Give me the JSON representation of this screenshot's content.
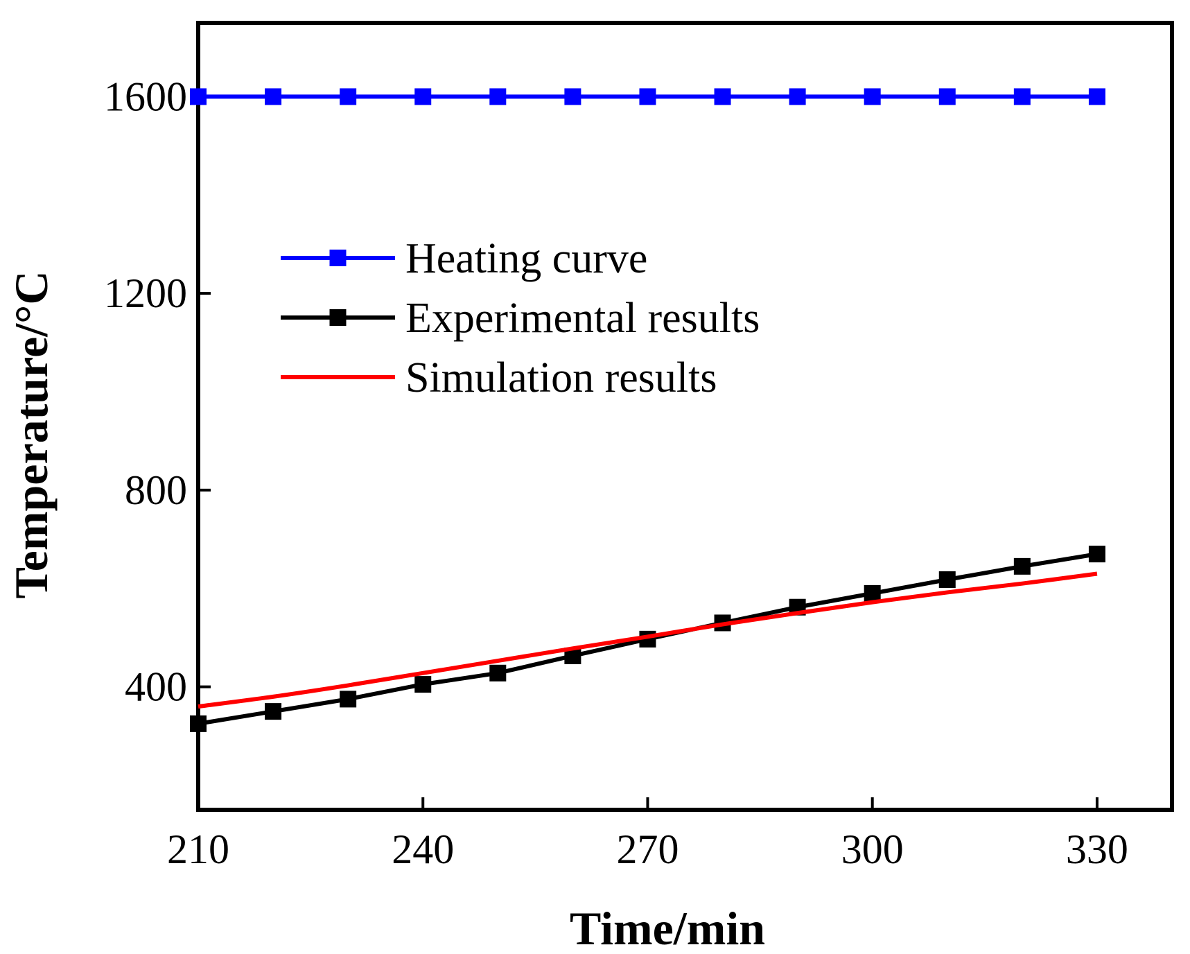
{
  "chart_data": {
    "type": "line",
    "title": "",
    "xlabel": "Time/min",
    "ylabel": "Temperature/°C",
    "xlim": [
      210,
      340
    ],
    "ylim": [
      150,
      1750
    ],
    "xticks": [
      210,
      240,
      270,
      300,
      330
    ],
    "yticks": [
      400,
      800,
      1200,
      1600
    ],
    "legend_position": "center-left",
    "series": [
      {
        "name": "Heating curve",
        "color": "#0000ff",
        "marker": "square",
        "x": [
          210,
          220,
          230,
          240,
          250,
          260,
          270,
          280,
          290,
          300,
          310,
          320,
          330
        ],
        "y": [
          1600,
          1600,
          1600,
          1600,
          1600,
          1600,
          1600,
          1600,
          1600,
          1600,
          1600,
          1600,
          1600
        ]
      },
      {
        "name": "Experimental results",
        "color": "#000000",
        "marker": "square",
        "x": [
          210,
          220,
          230,
          240,
          250,
          260,
          270,
          280,
          290,
          300,
          310,
          320,
          330
        ],
        "y": [
          325,
          350,
          375,
          405,
          428,
          463,
          497,
          530,
          562,
          590,
          618,
          645,
          670
        ]
      },
      {
        "name": "Simulation results",
        "color": "#ff0000",
        "marker": "none",
        "x": [
          210,
          220,
          230,
          240,
          250,
          260,
          270,
          280,
          290,
          300,
          310,
          320,
          330
        ],
        "y": [
          360,
          380,
          403,
          428,
          453,
          478,
          502,
          527,
          550,
          572,
          592,
          610,
          630
        ]
      }
    ]
  }
}
